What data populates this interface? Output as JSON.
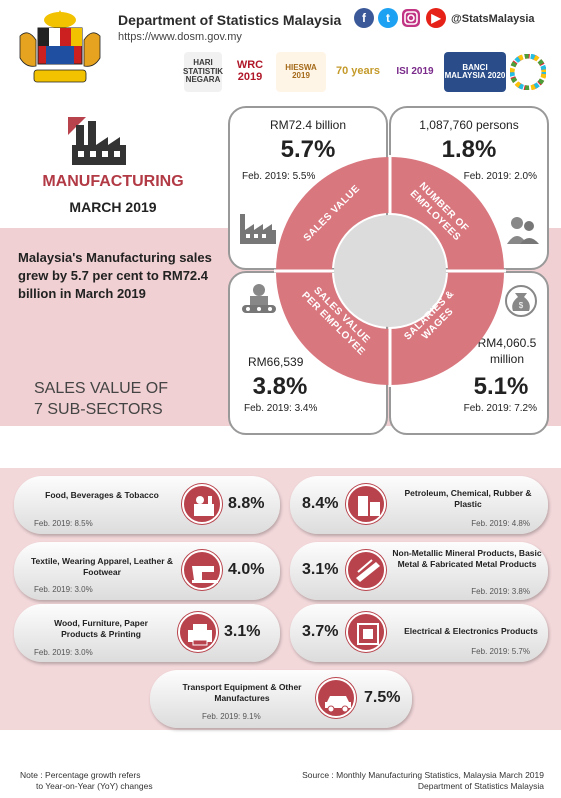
{
  "header": {
    "organization": "Department of Statistics Malaysia",
    "website": "https://www.dosm.gov.my",
    "social_handle": "@StatsMalaysia",
    "social_icons": [
      "facebook-icon",
      "twitter-icon",
      "instagram-icon",
      "youtube-icon"
    ],
    "logos": [
      {
        "name": "hari-statistik-negara-logo",
        "text": "HARI STATISTIK NEGARA"
      },
      {
        "name": "wrc-2019-logo",
        "text": "WRC 2019"
      },
      {
        "name": "hieswa-2019-logo",
        "text": "HIESWA 2019"
      },
      {
        "name": "70-years-logo",
        "text": "70 years"
      },
      {
        "name": "isi-2019-logo",
        "text": "ISI 2019"
      },
      {
        "name": "banci-malaysia-2020-logo",
        "text": "BANCI MALAYSIA 2020"
      },
      {
        "name": "sdg-logo",
        "text": ""
      }
    ]
  },
  "title": {
    "sector": "MANUFACTURING",
    "period": "MARCH 2019",
    "headline": "Malaysia's Manufacturing sales grew by 5.7 per cent to RM72.4 billion in March 2019",
    "subsectors_heading": "SALES VALUE OF 7 SUB-SECTORS"
  },
  "quadrants": {
    "sales_value": {
      "label": "SALES VALUE",
      "amount": "RM72.4 billion",
      "growth": "5.7%",
      "previous": "Feb. 2019: 5.5%"
    },
    "employees": {
      "label": "NUMBER OF EMPLOYEES",
      "amount": "1,087,760 persons",
      "growth": "1.8%",
      "previous": "Feb. 2019: 2.0%"
    },
    "sales_per_employee": {
      "label": "SALES VALUE PER EMPLOYEE",
      "amount": "RM66,539",
      "growth": "3.8%",
      "previous": "Feb. 2019: 3.4%"
    },
    "salaries": {
      "label": "SALARIES & WAGES",
      "amount": "RM4,060.5 million",
      "growth": "5.1%",
      "previous": "Feb. 2019: 7.2%"
    }
  },
  "subsectors": {
    "food": {
      "name": "Food, Beverages & Tobacco",
      "growth": "8.8%",
      "previous": "Feb. 2019: 8.5%"
    },
    "petroleum": {
      "name": "Petroleum, Chemical, Rubber & Plastic",
      "growth": "8.4%",
      "previous": "Feb. 2019: 4.8%"
    },
    "textile": {
      "name": "Textile, Wearing Apparel, Leather & Footwear",
      "growth": "4.0%",
      "previous": "Feb. 2019: 3.0%"
    },
    "metal": {
      "name": "Non-Metallic Mineral Products, Basic Metal & Fabricated Metal Products",
      "growth": "3.1%",
      "previous": "Feb. 2019: 3.8%"
    },
    "wood": {
      "name": "Wood, Furniture, Paper Products & Printing",
      "growth": "3.1%",
      "previous": "Feb. 2019: 3.0%"
    },
    "electrical": {
      "name": "Electrical & Electronics Products",
      "growth": "3.7%",
      "previous": "Feb. 2019: 5.7%"
    },
    "transport": {
      "name": "Transport Equipment & Other Manufactures",
      "growth": "7.5%",
      "previous": "Feb. 2019: 9.1%"
    }
  },
  "footer": {
    "note": "Note : Percentage growth refers",
    "note2": "to Year-on-Year (YoY) changes",
    "source": "Source : Monthly Manufacturing Statistics, Malaysia March 2019",
    "source2": "Department of Statistics Malaysia"
  },
  "colors": {
    "accent": "#b8434c",
    "band": "#f0d0d2",
    "ring": "#d9777f"
  }
}
